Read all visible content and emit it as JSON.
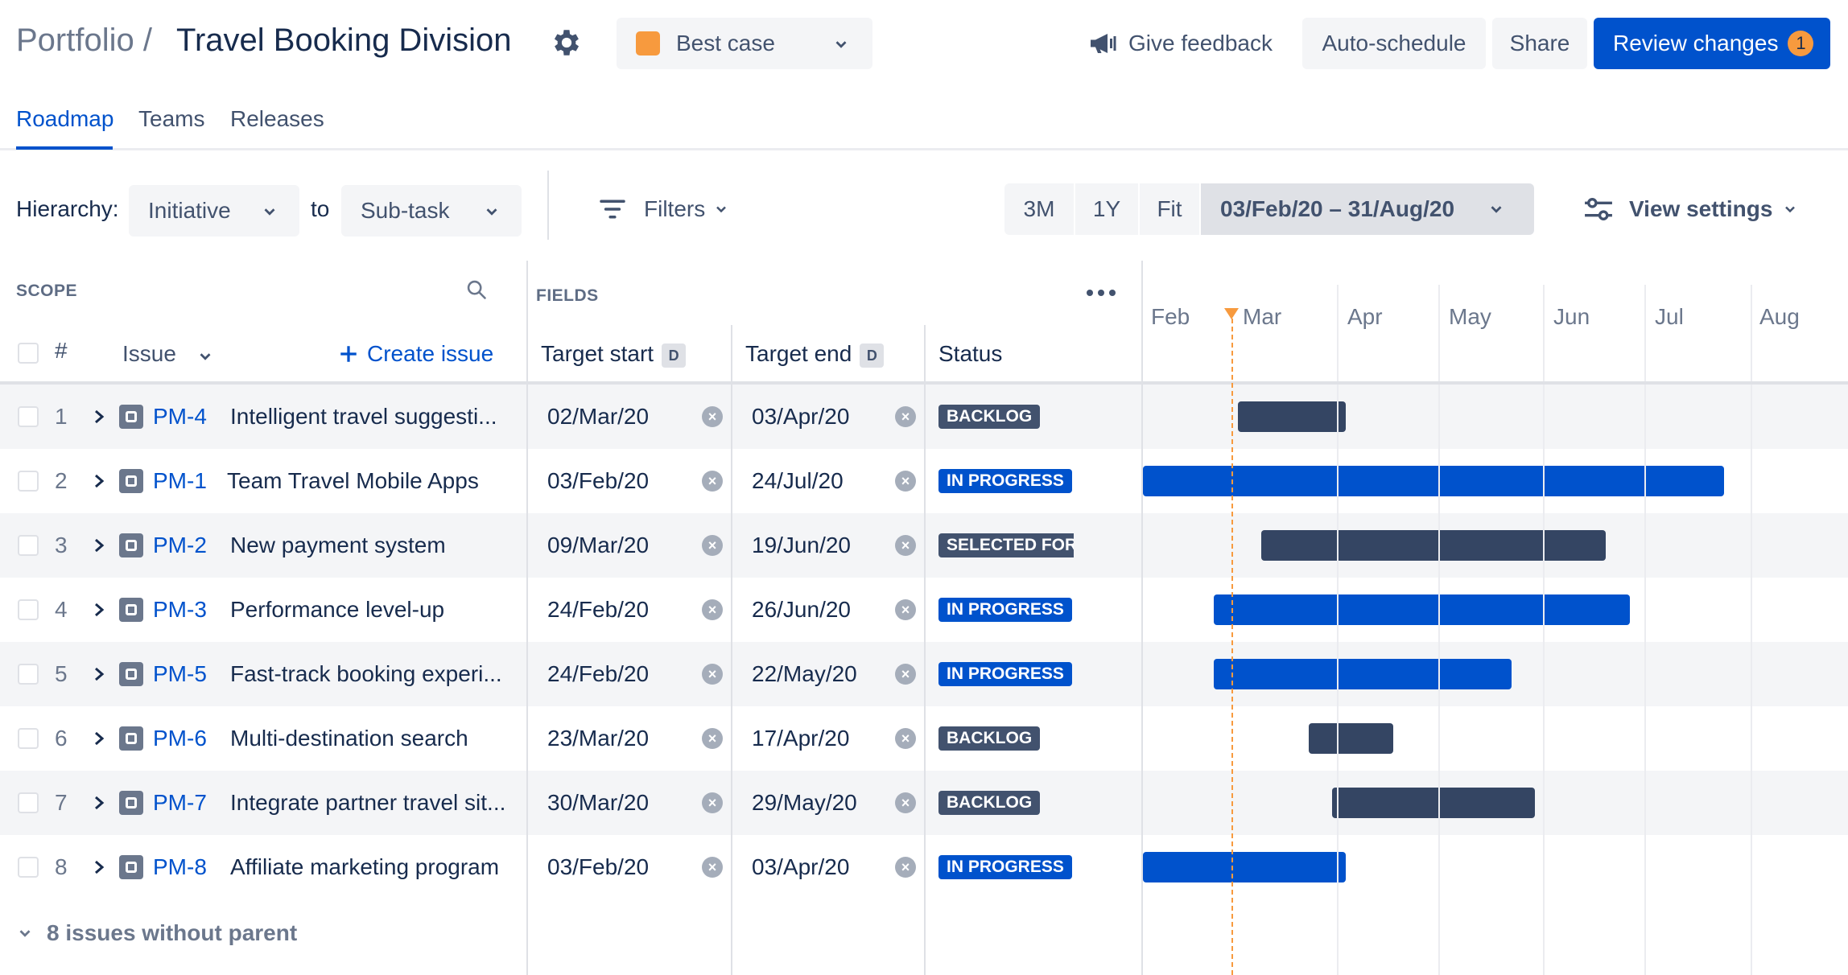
{
  "header": {
    "breadcrumb": "Portfolio /",
    "title": "Travel Booking Division",
    "scenario": "Best case",
    "feedback": "Give feedback",
    "auto_schedule": "Auto-schedule",
    "share": "Share",
    "review": "Review changes",
    "review_count": "1",
    "colors": {
      "primary": "#0052cc",
      "scenario": "#f79a3e"
    }
  },
  "tabs": [
    {
      "label": "Roadmap",
      "active": true
    },
    {
      "label": "Teams",
      "active": false
    },
    {
      "label": "Releases",
      "active": false
    }
  ],
  "toolbar": {
    "hierarchy_label": "Hierarchy:",
    "hierarchy_from": "Initiative",
    "to_label": "to",
    "hierarchy_to": "Sub-task",
    "filters": "Filters",
    "zoom": [
      "3M",
      "1Y",
      "Fit"
    ],
    "range": "03/Feb/20 – 31/Aug/20",
    "view_settings": "View settings"
  },
  "grid": {
    "scope_label": "SCOPE",
    "fields_label": "FIELDS",
    "num_header": "#",
    "issue_header": "Issue",
    "create_issue": "Create issue",
    "target_start": "Target start",
    "target_end": "Target end",
    "date_badge": "D",
    "status_header": "Status",
    "months": [
      "Feb",
      "Mar",
      "Apr",
      "May",
      "Jun",
      "Jul",
      "Aug"
    ]
  },
  "rows": [
    {
      "num": "1",
      "key": "PM-4",
      "summary": "Intelligent travel suggesti...",
      "start": "02/Mar/20",
      "end": "03/Apr/20",
      "status": "BACKLOG",
      "status_type": "backlog",
      "bar": "dark"
    },
    {
      "num": "2",
      "key": "PM-1",
      "summary": "Team Travel Mobile Apps",
      "start": "03/Feb/20",
      "end": "24/Jul/20",
      "status": "IN PROGRESS",
      "status_type": "progress",
      "bar": "blue"
    },
    {
      "num": "3",
      "key": "PM-2",
      "summary": "New payment system",
      "start": "09/Mar/20",
      "end": "19/Jun/20",
      "status": "SELECTED FOR DEVELOPMENT",
      "status_type": "selected",
      "bar": "dark"
    },
    {
      "num": "4",
      "key": "PM-3",
      "summary": "Performance level-up",
      "start": "24/Feb/20",
      "end": "26/Jun/20",
      "status": "IN PROGRESS",
      "status_type": "progress",
      "bar": "blue"
    },
    {
      "num": "5",
      "key": "PM-5",
      "summary": "Fast-track booking experi...",
      "start": "24/Feb/20",
      "end": "22/May/20",
      "status": "IN PROGRESS",
      "status_type": "progress",
      "bar": "blue"
    },
    {
      "num": "6",
      "key": "PM-6",
      "summary": "Multi-destination search",
      "start": "23/Mar/20",
      "end": "17/Apr/20",
      "status": "BACKLOG",
      "status_type": "backlog",
      "bar": "dark"
    },
    {
      "num": "7",
      "key": "PM-7",
      "summary": "Integrate partner travel sit...",
      "start": "30/Mar/20",
      "end": "29/May/20",
      "status": "BACKLOG",
      "status_type": "backlog",
      "bar": "dark"
    },
    {
      "num": "8",
      "key": "PM-8",
      "summary": "Affiliate marketing program",
      "start": "03/Feb/20",
      "end": "03/Apr/20",
      "status": "IN PROGRESS",
      "status_type": "progress",
      "bar": "blue"
    }
  ],
  "footer": {
    "label": "8 issues without parent"
  }
}
